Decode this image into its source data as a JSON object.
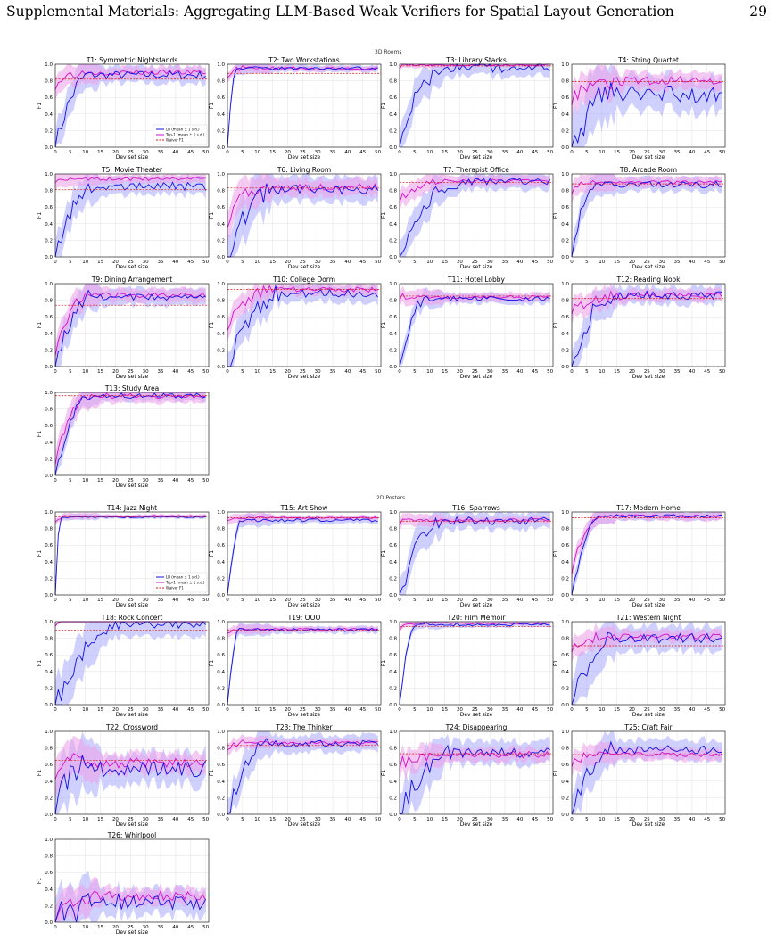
{
  "header": {
    "title": "Supplemental Materials: Aggregating LLM-Based Weak Verifiers for Spatial Layout Generation",
    "page_number": "29"
  },
  "sections": {
    "rooms_label": "3D Rooms",
    "posters_label": "2D Posters"
  },
  "colors": {
    "lb": "#1010e0",
    "lb_band": "#a9a9ff",
    "top1": "#d310c8",
    "top1_band": "#ec9ee8",
    "waiver": "#e01010",
    "grid": "#e2e2e2"
  },
  "legend": {
    "lb": "LB (mean ± 1 s.d.)",
    "top1": "Top-1 (mean ± 1 s.d.)",
    "waiver": "Waiver F1"
  },
  "axes": {
    "xlabel": "Dev set size",
    "ylabel": "F1",
    "xlim": [
      0,
      51
    ],
    "ylim": [
      0,
      1
    ],
    "xticks": [
      "0",
      "5",
      "10",
      "15",
      "20",
      "25",
      "30",
      "35",
      "40",
      "45",
      "50"
    ],
    "yticks": [
      "0.0",
      "0.2",
      "0.4",
      "0.6",
      "0.8",
      "1.0"
    ]
  },
  "chart_data": [
    {
      "type": "line",
      "title": "T1: Symmetric Nightstands",
      "waiver": 0.82,
      "lb_start": 0.0,
      "lb_rise": 12,
      "lb_level": 0.87,
      "lb_noise": 0.05,
      "lb_band": 0.1,
      "top1_start": 0.76,
      "top1_rise": 8,
      "top1_level": 0.9,
      "top1_noise": 0.03,
      "top1_band": 0.07
    },
    {
      "type": "line",
      "title": "T2: Two Workstations",
      "waiver": 0.89,
      "lb_start": 0.0,
      "lb_rise": 3,
      "lb_level": 0.95,
      "lb_noise": 0.02,
      "lb_band": 0.04,
      "top1_start": 0.88,
      "top1_rise": 6,
      "top1_level": 0.95,
      "top1_noise": 0.02,
      "top1_band": 0.03
    },
    {
      "type": "line",
      "title": "T3: Library Stacks",
      "waiver": 0.98,
      "lb_start": 0.1,
      "lb_rise": 16,
      "lb_level": 0.96,
      "lb_noise": 0.06,
      "lb_band": 0.1,
      "top1_start": 0.97,
      "top1_rise": 2,
      "top1_level": 0.99,
      "top1_noise": 0.01,
      "top1_band": 0.02
    },
    {
      "type": "line",
      "title": "T4: String Quartet",
      "waiver": 0.79,
      "lb_start": 0.0,
      "lb_rise": 14,
      "lb_level": 0.64,
      "lb_noise": 0.1,
      "lb_band": 0.2,
      "top1_start": 0.62,
      "top1_rise": 20,
      "top1_level": 0.8,
      "top1_noise": 0.05,
      "top1_band": 0.1
    },
    {
      "type": "line",
      "title": "T5: Movie Theater",
      "waiver": 0.81,
      "lb_start": 0.0,
      "lb_rise": 14,
      "lb_level": 0.85,
      "lb_noise": 0.05,
      "lb_band": 0.1,
      "top1_start": 0.94,
      "top1_rise": 6,
      "top1_level": 0.94,
      "top1_noise": 0.02,
      "top1_band": 0.05
    },
    {
      "type": "line",
      "title": "T6: Living Room",
      "waiver": 0.83,
      "lb_start": 0.0,
      "lb_rise": 16,
      "lb_level": 0.81,
      "lb_noise": 0.06,
      "lb_band": 0.15,
      "top1_start": 0.44,
      "top1_rise": 12,
      "top1_level": 0.84,
      "top1_noise": 0.04,
      "top1_band": 0.1
    },
    {
      "type": "line",
      "title": "T7: Therapist Office",
      "waiver": 0.9,
      "lb_start": 0.0,
      "lb_rise": 20,
      "lb_level": 0.91,
      "lb_noise": 0.04,
      "lb_band": 0.1,
      "top1_start": 0.7,
      "top1_rise": 15,
      "top1_level": 0.92,
      "top1_noise": 0.02,
      "top1_band": 0.06
    },
    {
      "type": "line",
      "title": "T8: Arcade Room",
      "waiver": 0.88,
      "lb_start": 0.0,
      "lb_rise": 8,
      "lb_level": 0.87,
      "lb_noise": 0.04,
      "lb_band": 0.08,
      "top1_start": 0.8,
      "top1_rise": 6,
      "top1_level": 0.9,
      "top1_noise": 0.02,
      "top1_band": 0.06
    },
    {
      "type": "line",
      "title": "T9: Dining Arrangement",
      "waiver": 0.74,
      "lb_start": 0.0,
      "lb_rise": 12,
      "lb_level": 0.84,
      "lb_noise": 0.04,
      "lb_band": 0.1,
      "top1_start": 0.2,
      "top1_rise": 11,
      "top1_level": 0.86,
      "top1_noise": 0.03,
      "top1_band": 0.08
    },
    {
      "type": "line",
      "title": "T10: College Dorm",
      "waiver": 0.93,
      "lb_start": 0.0,
      "lb_rise": 18,
      "lb_level": 0.88,
      "lb_noise": 0.05,
      "lb_band": 0.1,
      "top1_start": 0.5,
      "top1_rise": 15,
      "top1_level": 0.93,
      "top1_noise": 0.03,
      "top1_band": 0.07
    },
    {
      "type": "line",
      "title": "T11: Hotel Lobby",
      "waiver": 0.85,
      "lb_start": 0.0,
      "lb_rise": 9,
      "lb_level": 0.82,
      "lb_noise": 0.03,
      "lb_band": 0.06,
      "top1_start": 0.84,
      "top1_rise": 5,
      "top1_level": 0.84,
      "top1_noise": 0.02,
      "top1_band": 0.05
    },
    {
      "type": "line",
      "title": "T12: Reading Nook",
      "waiver": 0.82,
      "lb_start": 0.0,
      "lb_rise": 14,
      "lb_level": 0.86,
      "lb_noise": 0.05,
      "lb_band": 0.1,
      "top1_start": 0.7,
      "top1_rise": 20,
      "top1_level": 0.86,
      "top1_noise": 0.03,
      "top1_band": 0.07
    },
    {
      "type": "line",
      "title": "T13: Study Area",
      "waiver": 0.96,
      "lb_start": 0.0,
      "lb_rise": 12,
      "lb_level": 0.96,
      "lb_noise": 0.03,
      "lb_band": 0.06,
      "top1_start": 0.2,
      "top1_rise": 12,
      "top1_level": 0.96,
      "top1_noise": 0.03,
      "top1_band": 0.08
    },
    {
      "type": "line",
      "title": "T14: Jazz Night",
      "waiver": 0.94,
      "lb_start": 0.0,
      "lb_rise": 2,
      "lb_level": 0.94,
      "lb_noise": 0.01,
      "lb_band": 0.02,
      "top1_start": 0.9,
      "top1_rise": 4,
      "top1_level": 0.95,
      "top1_noise": 0.01,
      "top1_band": 0.02
    },
    {
      "type": "line",
      "title": "T15: Art Show",
      "waiver": 0.93,
      "lb_start": 0.0,
      "lb_rise": 5,
      "lb_level": 0.9,
      "lb_noise": 0.02,
      "lb_band": 0.04,
      "top1_start": 0.92,
      "top1_rise": 3,
      "top1_level": 0.93,
      "top1_noise": 0.01,
      "top1_band": 0.03
    },
    {
      "type": "line",
      "title": "T16: Sparrows",
      "waiver": 0.89,
      "lb_start": 0.0,
      "lb_rise": 14,
      "lb_level": 0.9,
      "lb_noise": 0.06,
      "lb_band": 0.1,
      "top1_start": 0.88,
      "top1_rise": 4,
      "top1_level": 0.9,
      "top1_noise": 0.02,
      "top1_band": 0.04
    },
    {
      "type": "line",
      "title": "T17: Modern Home",
      "waiver": 0.93,
      "lb_start": 0.0,
      "lb_rise": 10,
      "lb_level": 0.95,
      "lb_noise": 0.02,
      "lb_band": 0.05,
      "top1_start": 0.3,
      "top1_rise": 10,
      "top1_level": 0.95,
      "top1_noise": 0.02,
      "top1_band": 0.05
    },
    {
      "type": "line",
      "title": "T18: Rock Concert",
      "waiver": 0.9,
      "lb_start": 0.0,
      "lb_rise": 22,
      "lb_level": 0.98,
      "lb_noise": 0.06,
      "lb_band": 0.15,
      "top1_start": 0.95,
      "top1_rise": 2,
      "top1_level": 1.0,
      "top1_noise": 0.0,
      "top1_band": 0.01
    },
    {
      "type": "line",
      "title": "T19: OOO",
      "waiver": 0.9,
      "lb_start": 0.0,
      "lb_rise": 4,
      "lb_level": 0.9,
      "lb_noise": 0.02,
      "lb_band": 0.04,
      "top1_start": 0.88,
      "top1_rise": 4,
      "top1_level": 0.91,
      "top1_noise": 0.01,
      "top1_band": 0.03
    },
    {
      "type": "line",
      "title": "T20: Film Memoir",
      "waiver": 0.94,
      "lb_start": 0.0,
      "lb_rise": 6,
      "lb_level": 0.97,
      "lb_noise": 0.02,
      "lb_band": 0.03,
      "top1_start": 0.92,
      "top1_rise": 6,
      "top1_level": 0.98,
      "top1_noise": 0.01,
      "top1_band": 0.02
    },
    {
      "type": "line",
      "title": "T21: Western Night",
      "waiver": 0.71,
      "lb_start": 0.0,
      "lb_rise": 16,
      "lb_level": 0.8,
      "lb_noise": 0.06,
      "lb_band": 0.15,
      "top1_start": 0.7,
      "top1_rise": 10,
      "top1_level": 0.82,
      "top1_noise": 0.03,
      "top1_band": 0.07
    },
    {
      "type": "line",
      "title": "T22: Crossword",
      "waiver": 0.65,
      "lb_start": 0.0,
      "lb_rise": 10,
      "lb_level": 0.55,
      "lb_noise": 0.1,
      "lb_band": 0.18,
      "top1_start": 0.55,
      "top1_rise": 10,
      "top1_level": 0.62,
      "top1_noise": 0.06,
      "top1_band": 0.12
    },
    {
      "type": "line",
      "title": "T23: The Thinker",
      "waiver": 0.83,
      "lb_start": 0.0,
      "lb_rise": 14,
      "lb_level": 0.85,
      "lb_noise": 0.04,
      "lb_band": 0.1,
      "top1_start": 0.82,
      "top1_rise": 6,
      "top1_level": 0.86,
      "top1_noise": 0.02,
      "top1_band": 0.04
    },
    {
      "type": "line",
      "title": "T24: Disappearing",
      "waiver": 0.73,
      "lb_start": 0.0,
      "lb_rise": 18,
      "lb_level": 0.74,
      "lb_noise": 0.06,
      "lb_band": 0.14,
      "top1_start": 0.62,
      "top1_rise": 10,
      "top1_level": 0.72,
      "top1_noise": 0.04,
      "top1_band": 0.08
    },
    {
      "type": "line",
      "title": "T25: Craft Fair",
      "waiver": 0.72,
      "lb_start": 0.0,
      "lb_rise": 14,
      "lb_level": 0.78,
      "lb_noise": 0.05,
      "lb_band": 0.12,
      "top1_start": 0.64,
      "top1_rise": 10,
      "top1_level": 0.72,
      "top1_noise": 0.03,
      "top1_band": 0.07
    },
    {
      "type": "line",
      "title": "T26: Whirlpool",
      "waiver": 0.33,
      "lb_start": 0.0,
      "lb_rise": 12,
      "lb_level": 0.25,
      "lb_noise": 0.1,
      "lb_band": 0.15,
      "top1_start": 0.1,
      "top1_rise": 12,
      "top1_level": 0.32,
      "top1_noise": 0.06,
      "top1_band": 0.1
    }
  ]
}
